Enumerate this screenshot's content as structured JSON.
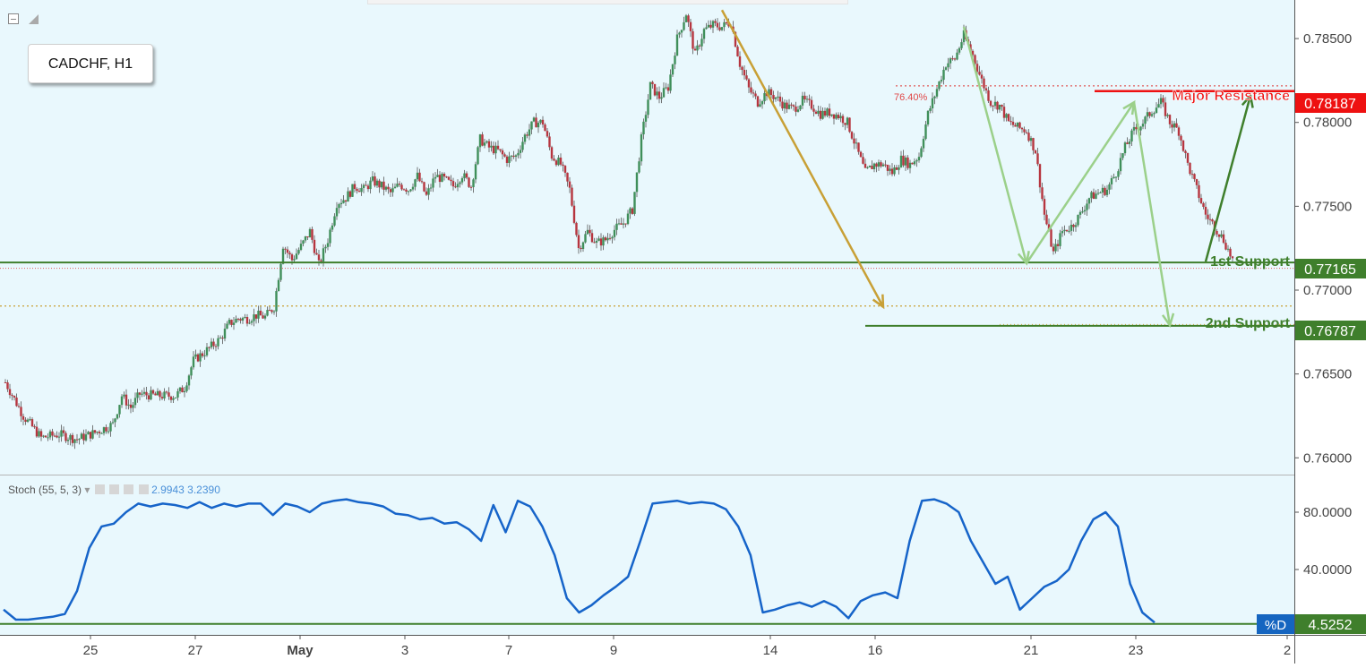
{
  "symbol": "CADCHF, H1",
  "colors": {
    "background": "#e9f8fd",
    "axis_text": "#444444",
    "resistance": "#ee1111",
    "support": "#3f7f2c",
    "fib_orange": "#c8a036",
    "arrow_light_green": "#9bd08a",
    "arrow_dark_green": "#3f7f2c",
    "candle_up": "#3f8f5a",
    "candle_down": "#b6353f",
    "stoch_line": "#1664c9",
    "stoch_badge": "#1565c0"
  },
  "price_axis": {
    "ticks": [
      "0.78500",
      "0.78000",
      "0.77500",
      "0.77000",
      "0.76500",
      "0.76000"
    ]
  },
  "stoch_axis": {
    "ticks": [
      "80.0000",
      "40.0000"
    ]
  },
  "time_axis": {
    "labels": [
      "25",
      "27",
      "May",
      "3",
      "7",
      "9",
      "14",
      "16",
      "21",
      "23",
      "2"
    ]
  },
  "levels": {
    "major_resistance": {
      "label": "Major Resistance",
      "price": "0.78187"
    },
    "first_support": {
      "label": "1st Support",
      "price": "0.77165"
    },
    "second_support": {
      "label": "2nd Support",
      "price": "0.76787"
    },
    "fib_label": "76.40%"
  },
  "stoch": {
    "legend_name": "Stoch (55, 5, 3)",
    "legend_values": "2.9943  3.2390",
    "d_label": "%D",
    "d_value": "4.5252"
  },
  "chart_data": {
    "type": "candlestick",
    "symbol": "CADCHF",
    "timeframe": "H1",
    "y_range": [
      0.759,
      0.7873
    ],
    "close_path": [
      [
        0,
        0.7645
      ],
      [
        2,
        0.7625
      ],
      [
        4,
        0.7612
      ],
      [
        6,
        0.7614
      ],
      [
        8,
        0.7611
      ],
      [
        10,
        0.7615
      ],
      [
        12,
        0.762
      ],
      [
        13,
        0.7637
      ],
      [
        14,
        0.763
      ],
      [
        15,
        0.7638
      ],
      [
        17,
        0.7637
      ],
      [
        19,
        0.7637
      ],
      [
        20,
        0.7642
      ],
      [
        21,
        0.7658
      ],
      [
        22,
        0.7662
      ],
      [
        24,
        0.7671
      ],
      [
        25,
        0.768
      ],
      [
        26,
        0.7683
      ],
      [
        27,
        0.7683
      ],
      [
        28,
        0.7685
      ],
      [
        29,
        0.7684
      ],
      [
        30,
        0.769
      ],
      [
        31,
        0.7727
      ],
      [
        32,
        0.7718
      ],
      [
        33,
        0.7726
      ],
      [
        34,
        0.7735
      ],
      [
        35,
        0.7715
      ],
      [
        36,
        0.773
      ],
      [
        37,
        0.7752
      ],
      [
        38,
        0.7755
      ],
      [
        39,
        0.7762
      ],
      [
        40,
        0.776
      ],
      [
        41,
        0.7765
      ],
      [
        42,
        0.7762
      ],
      [
        43,
        0.7758
      ],
      [
        44,
        0.7763
      ],
      [
        45,
        0.776
      ],
      [
        46,
        0.7768
      ],
      [
        47,
        0.7756
      ],
      [
        48,
        0.7768
      ],
      [
        49,
        0.7766
      ],
      [
        50,
        0.7762
      ],
      [
        51,
        0.7769
      ],
      [
        52,
        0.7762
      ],
      [
        53,
        0.779
      ],
      [
        54,
        0.7785
      ],
      [
        55,
        0.7783
      ],
      [
        56,
        0.7778
      ],
      [
        57,
        0.778
      ],
      [
        58,
        0.7792
      ],
      [
        59,
        0.78
      ],
      [
        60,
        0.78
      ],
      [
        61,
        0.778
      ],
      [
        62,
        0.7775
      ],
      [
        63,
        0.776
      ],
      [
        64,
        0.7725
      ],
      [
        65,
        0.7735
      ],
      [
        66,
        0.7728
      ],
      [
        67,
        0.773
      ],
      [
        68,
        0.7736
      ],
      [
        69,
        0.774
      ],
      [
        70,
        0.7748
      ],
      [
        71,
        0.779
      ],
      [
        72,
        0.7822
      ],
      [
        73,
        0.7815
      ],
      [
        74,
        0.7821
      ],
      [
        75,
        0.785
      ],
      [
        76,
        0.7865
      ],
      [
        77,
        0.784
      ],
      [
        78,
        0.7855
      ],
      [
        79,
        0.7858
      ],
      [
        80,
        0.7857
      ],
      [
        81,
        0.786
      ],
      [
        82,
        0.7835
      ],
      [
        83,
        0.782
      ],
      [
        84,
        0.7812
      ],
      [
        85,
        0.7818
      ],
      [
        86,
        0.7815
      ],
      [
        87,
        0.781
      ],
      [
        88,
        0.7808
      ],
      [
        89,
        0.7813
      ],
      [
        90,
        0.781
      ],
      [
        91,
        0.7805
      ],
      [
        92,
        0.7806
      ],
      [
        93,
        0.7804
      ],
      [
        94,
        0.78
      ],
      [
        95,
        0.7785
      ],
      [
        96,
        0.777
      ],
      [
        97,
        0.7775
      ],
      [
        98,
        0.7775
      ],
      [
        99,
        0.777
      ],
      [
        100,
        0.7778
      ],
      [
        101,
        0.7775
      ],
      [
        102,
        0.778
      ],
      [
        103,
        0.7805
      ],
      [
        104,
        0.782
      ],
      [
        105,
        0.7835
      ],
      [
        106,
        0.7838
      ],
      [
        107,
        0.7852
      ],
      [
        108,
        0.784
      ],
      [
        109,
        0.7825
      ],
      [
        110,
        0.7812
      ],
      [
        111,
        0.781
      ],
      [
        112,
        0.78
      ],
      [
        113,
        0.7797
      ],
      [
        114,
        0.7795
      ],
      [
        115,
        0.7783
      ],
      [
        116,
        0.7745
      ],
      [
        117,
        0.7722
      ],
      [
        118,
        0.7735
      ],
      [
        119,
        0.7738
      ],
      [
        120,
        0.7745
      ],
      [
        121,
        0.7755
      ],
      [
        122,
        0.7758
      ],
      [
        123,
        0.776
      ],
      [
        124,
        0.777
      ],
      [
        125,
        0.7785
      ],
      [
        126,
        0.7795
      ],
      [
        127,
        0.78
      ],
      [
        128,
        0.7807
      ],
      [
        129,
        0.7812
      ],
      [
        130,
        0.78
      ],
      [
        131,
        0.7795
      ],
      [
        132,
        0.7775
      ],
      [
        133,
        0.776
      ],
      [
        134,
        0.7745
      ],
      [
        135,
        0.7738
      ],
      [
        136,
        0.773
      ],
      [
        137,
        0.7718
      ]
    ],
    "levels": [
      {
        "name": "Major Resistance",
        "value": 0.78187
      },
      {
        "name": "1st Support",
        "value": 0.77165
      },
      {
        "name": "2nd Support",
        "value": 0.76787
      },
      {
        "name": "76.40%",
        "value": 0.78218
      },
      {
        "name": "dotted level",
        "value": 0.76905
      },
      {
        "name": "dotted level",
        "value": 0.7713
      }
    ],
    "arrows": [
      {
        "color": "fib_orange",
        "from": [
          80,
          0.7867
        ],
        "to": [
          98,
          0.769
        ]
      },
      {
        "color": "arrow_light_green",
        "from": [
          107,
          0.7857
        ],
        "to": [
          114,
          0.7716
        ]
      },
      {
        "color": "arrow_light_green",
        "from": [
          114,
          0.7716
        ],
        "to": [
          126,
          0.7812
        ]
      },
      {
        "color": "arrow_light_green",
        "from": [
          126,
          0.7812
        ],
        "to": [
          130,
          0.7679
        ]
      },
      {
        "color": "arrow_dark_green",
        "from": [
          134,
          0.7717
        ],
        "to": [
          139,
          0.7816
        ]
      }
    ],
    "stoch_path": [
      [
        0,
        12
      ],
      [
        1,
        5
      ],
      [
        2,
        5
      ],
      [
        3,
        6
      ],
      [
        4,
        7
      ],
      [
        5,
        9
      ],
      [
        6,
        25
      ],
      [
        7,
        55
      ],
      [
        8,
        70
      ],
      [
        9,
        72
      ],
      [
        10,
        80
      ],
      [
        11,
        86
      ],
      [
        12,
        84
      ],
      [
        13,
        86
      ],
      [
        14,
        85
      ],
      [
        15,
        83
      ],
      [
        16,
        87
      ],
      [
        17,
        83
      ],
      [
        18,
        86
      ],
      [
        19,
        84
      ],
      [
        20,
        86
      ],
      [
        21,
        86
      ],
      [
        22,
        78
      ],
      [
        23,
        86
      ],
      [
        24,
        84
      ],
      [
        25,
        80
      ],
      [
        26,
        86
      ],
      [
        27,
        88
      ],
      [
        28,
        89
      ],
      [
        29,
        87
      ],
      [
        30,
        86
      ],
      [
        31,
        84
      ],
      [
        32,
        79
      ],
      [
        33,
        78
      ],
      [
        34,
        75
      ],
      [
        35,
        76
      ],
      [
        36,
        72
      ],
      [
        37,
        73
      ],
      [
        38,
        68
      ],
      [
        39,
        60
      ],
      [
        40,
        85
      ],
      [
        41,
        66
      ],
      [
        42,
        88
      ],
      [
        43,
        84
      ],
      [
        44,
        70
      ],
      [
        45,
        50
      ],
      [
        46,
        20
      ],
      [
        47,
        10
      ],
      [
        48,
        15
      ],
      [
        49,
        22
      ],
      [
        50,
        28
      ],
      [
        51,
        35
      ],
      [
        52,
        60
      ],
      [
        53,
        86
      ],
      [
        54,
        87
      ],
      [
        55,
        88
      ],
      [
        56,
        86
      ],
      [
        57,
        87
      ],
      [
        58,
        86
      ],
      [
        59,
        82
      ],
      [
        60,
        70
      ],
      [
        61,
        50
      ],
      [
        62,
        10
      ],
      [
        63,
        12
      ],
      [
        64,
        15
      ],
      [
        65,
        17
      ],
      [
        66,
        14
      ],
      [
        67,
        18
      ],
      [
        68,
        14
      ],
      [
        69,
        6
      ],
      [
        70,
        18
      ],
      [
        71,
        22
      ],
      [
        72,
        24
      ],
      [
        73,
        20
      ],
      [
        74,
        60
      ],
      [
        75,
        88
      ],
      [
        76,
        89
      ],
      [
        77,
        86
      ],
      [
        78,
        80
      ],
      [
        79,
        60
      ],
      [
        80,
        45
      ],
      [
        81,
        30
      ],
      [
        82,
        35
      ],
      [
        83,
        12
      ],
      [
        84,
        20
      ],
      [
        85,
        28
      ],
      [
        86,
        32
      ],
      [
        87,
        40
      ],
      [
        88,
        60
      ],
      [
        89,
        75
      ],
      [
        90,
        80
      ],
      [
        91,
        70
      ],
      [
        92,
        30
      ],
      [
        93,
        10
      ],
      [
        94,
        3
      ]
    ],
    "stoch_range": [
      0,
      100
    ]
  }
}
